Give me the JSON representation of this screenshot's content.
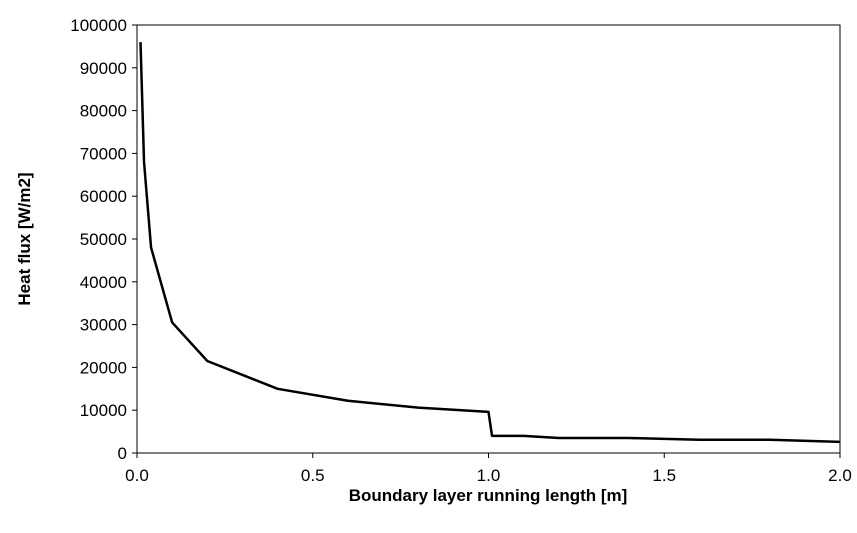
{
  "chart_data": {
    "type": "line",
    "title": "",
    "xlabel": "Boundary layer running length [m]",
    "ylabel": "Heat flux [W/m2]",
    "xlim": [
      0,
      2.0
    ],
    "ylim": [
      0,
      100000
    ],
    "x_ticks": [
      0,
      0.5,
      1.0,
      1.5,
      2.0
    ],
    "x_tick_labels": [
      "0.0",
      "0.5",
      "1.0",
      "1.5",
      "2.0"
    ],
    "y_ticks": [
      0,
      10000,
      20000,
      30000,
      40000,
      50000,
      60000,
      70000,
      80000,
      90000,
      100000
    ],
    "y_tick_labels": [
      "0",
      "10000",
      "20000",
      "30000",
      "40000",
      "50000",
      "60000",
      "70000",
      "80000",
      "90000",
      "100000"
    ],
    "grid": false,
    "legend": "none",
    "line_color": "#000000",
    "series": [
      {
        "x": [
          0.01,
          0.02,
          0.04,
          0.1,
          0.2,
          0.4,
          0.6,
          0.8,
          1.0,
          1.01,
          1.1,
          1.2,
          1.4,
          1.6,
          1.8,
          2.0
        ],
        "y": [
          96000,
          68000,
          48000,
          30500,
          21500,
          15000,
          12200,
          10600,
          9600,
          4000,
          4000,
          3500,
          3500,
          3100,
          3100,
          2600
        ]
      }
    ]
  }
}
